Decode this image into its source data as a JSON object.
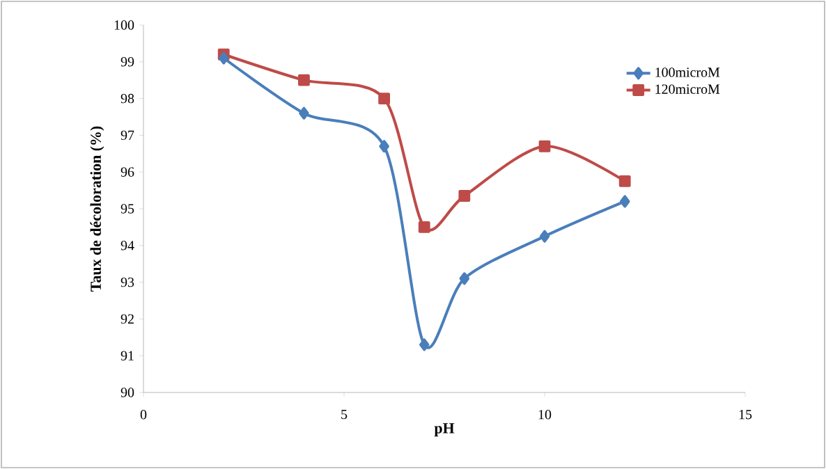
{
  "chart_data": {
    "type": "line",
    "xlabel": "pH",
    "ylabel": "Taux de décoloration (%)",
    "x": [
      2,
      4,
      6,
      7,
      8,
      10,
      12
    ],
    "series": [
      {
        "name": "100microM",
        "color": "#4a7ebb",
        "marker": "diamond",
        "values": [
          99.1,
          97.6,
          96.7,
          91.3,
          93.1,
          94.25,
          95.2
        ]
      },
      {
        "name": "120microM",
        "color": "#be4b48",
        "marker": "square",
        "values": [
          99.2,
          98.5,
          98.0,
          94.5,
          95.35,
          96.7,
          95.75
        ]
      }
    ],
    "xlim": [
      0,
      15
    ],
    "xticks": [
      0,
      5,
      10,
      15
    ],
    "ylim": [
      90,
      100
    ],
    "yticks": [
      90,
      91,
      92,
      93,
      94,
      95,
      96,
      97,
      98,
      99,
      100
    ],
    "grid": false,
    "legend": "top right"
  }
}
